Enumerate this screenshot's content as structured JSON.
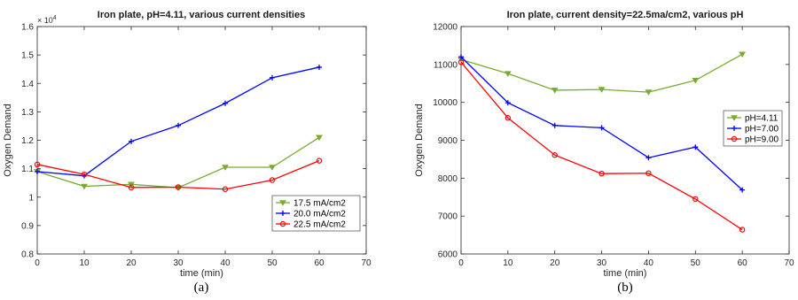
{
  "chart_data": [
    {
      "type": "line",
      "title": "Iron plate, pH=4.11, various current densities",
      "xlabel": "time (min)",
      "ylabel": "Oxygen Demand",
      "panel_label": "(a)",
      "x_ticks": [
        "0",
        "10",
        "20",
        "30",
        "40",
        "50",
        "60",
        "70"
      ],
      "y_ticks": [
        "0.8",
        "0.9",
        "1",
        "1.1",
        "1.2",
        "1.3",
        "1.4",
        "1.5",
        "1.6"
      ],
      "y_exponent": {
        "base": "× 10",
        "power": "4"
      },
      "xlim": [
        0,
        70
      ],
      "ylim": [
        8000,
        16000
      ],
      "grid": false,
      "legend_position": "bottom-right",
      "x": [
        0,
        10,
        20,
        30,
        40,
        50,
        60
      ],
      "series": [
        {
          "name": "17.5 mA/cm2",
          "color": "#77ac30",
          "marker": "triangle-down",
          "values": [
            10900,
            10380,
            10450,
            10330,
            11050,
            11050,
            12100
          ]
        },
        {
          "name": "20.0 mA/cm2",
          "color": "#0000ff",
          "marker": "plus",
          "values": [
            10900,
            10750,
            11960,
            12520,
            13300,
            14200,
            14570
          ]
        },
        {
          "name": "22.5 mA/cm2",
          "color": "#ff0000",
          "marker": "circle",
          "values": [
            11150,
            10800,
            10340,
            10350,
            10280,
            10600,
            11280
          ]
        }
      ]
    },
    {
      "type": "line",
      "title": "Iron plate, current density=22.5ma/cm2, various pH",
      "xlabel": "time (min)",
      "ylabel": "Oxygen Demand",
      "panel_label": "(b)",
      "x_ticks": [
        "0",
        "10",
        "20",
        "30",
        "40",
        "50",
        "60",
        "70"
      ],
      "y_ticks": [
        "6000",
        "7000",
        "8000",
        "9000",
        "10000",
        "11000",
        "12000"
      ],
      "xlim": [
        0,
        70
      ],
      "ylim": [
        6000,
        12000
      ],
      "grid": false,
      "legend_position": "top-right",
      "x": [
        0,
        10,
        20,
        30,
        40,
        50,
        60
      ],
      "series": [
        {
          "name": "pH=4.11",
          "color": "#77ac30",
          "marker": "triangle-down",
          "values": [
            11130,
            10760,
            10320,
            10340,
            10270,
            10580,
            11270
          ]
        },
        {
          "name": "pH=7.00",
          "color": "#0000ff",
          "marker": "plus",
          "values": [
            11200,
            9990,
            9390,
            9330,
            8540,
            8820,
            7690
          ]
        },
        {
          "name": "pH=9.00",
          "color": "#ff0000",
          "marker": "circle",
          "values": [
            11060,
            9590,
            8610,
            8120,
            8130,
            7450,
            6640
          ]
        }
      ]
    }
  ]
}
